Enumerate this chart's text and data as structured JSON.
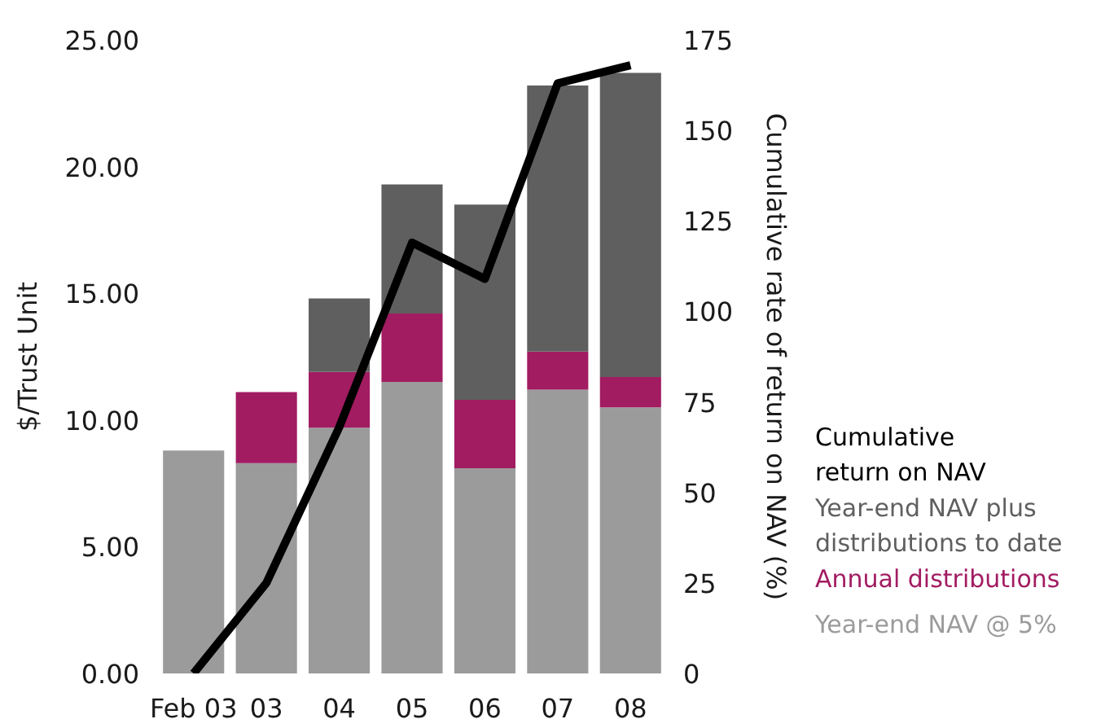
{
  "chart_data": {
    "type": "bar",
    "stacked": true,
    "categories": [
      "Feb 03",
      "03",
      "04",
      "05",
      "06",
      "07",
      "08"
    ],
    "ylabel": "$/Trust Unit",
    "y2label": "Cumulative rate of return on NAV (%)",
    "ylim": [
      0,
      25
    ],
    "yticks": [
      {
        "value": 0,
        "label": "0.00"
      },
      {
        "value": 5,
        "label": "5.00"
      },
      {
        "value": 10,
        "label": "10.00"
      },
      {
        "value": 15,
        "label": "15.00"
      },
      {
        "value": 20,
        "label": "20.00"
      },
      {
        "value": 25,
        "label": "25.00"
      }
    ],
    "y2lim": [
      0,
      175
    ],
    "y2ticks": [
      0,
      25,
      50,
      75,
      100,
      125,
      150,
      175
    ],
    "legend": "bottom right",
    "series": [
      {
        "name": "Year-end NAV @ 5%",
        "color": "#9b9b9b",
        "values": [
          8.8,
          8.3,
          9.7,
          11.5,
          8.1,
          11.2,
          10.5
        ]
      },
      {
        "name": "Annual distributions",
        "color": "#a21c62",
        "values": [
          null,
          2.8,
          2.2,
          2.7,
          2.7,
          1.5,
          1.2
        ]
      },
      {
        "name": "Year-end NAV plus distributions to date",
        "color": "#5f5f5f",
        "values": [
          null,
          null,
          2.9,
          5.1,
          7.7,
          10.5,
          12.0
        ]
      },
      {
        "name": "Cumulative return on NAV",
        "type": "line",
        "axis": "y2",
        "color": "#000000",
        "values": [
          0,
          25,
          68,
          119,
          109,
          163,
          168
        ]
      }
    ]
  }
}
